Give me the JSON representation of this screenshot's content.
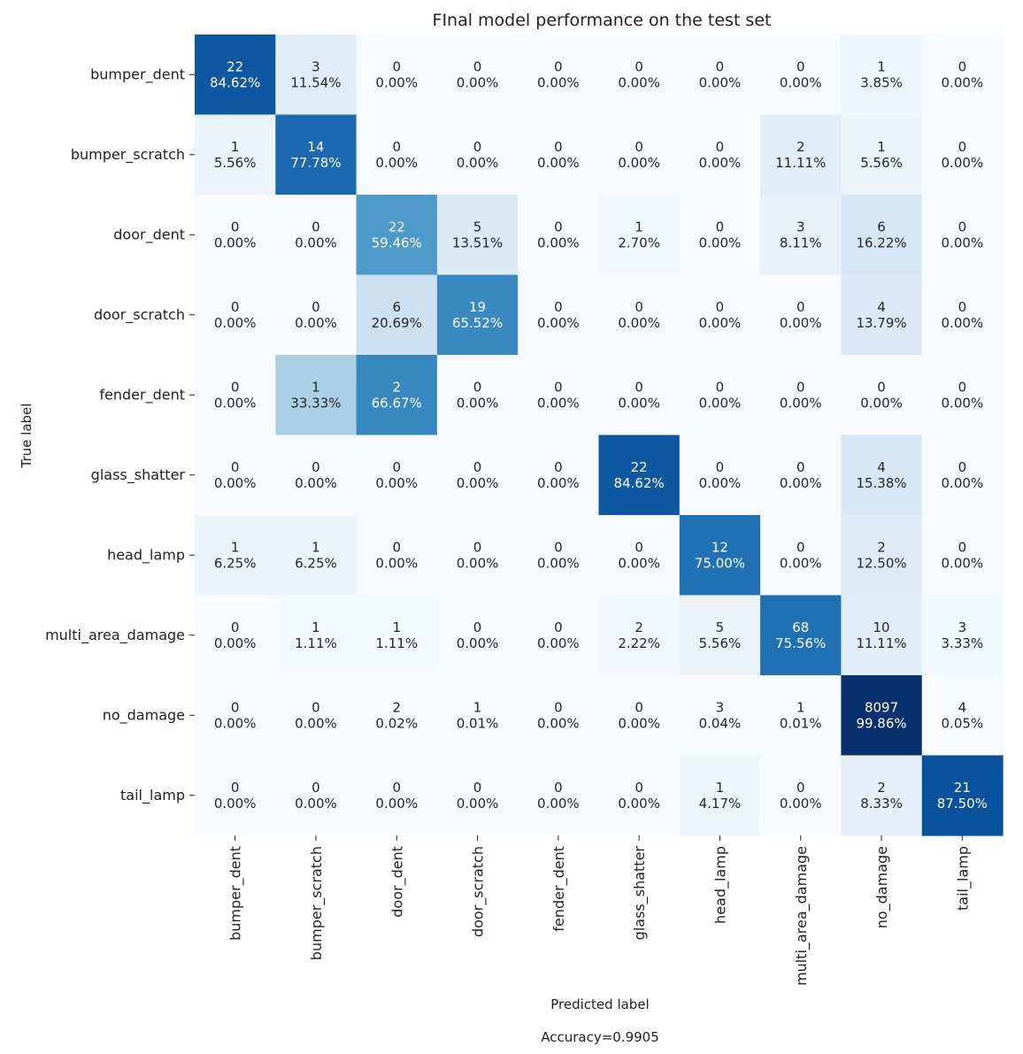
{
  "chart_data": {
    "type": "heatmap",
    "title": "FInal model performance on the test set",
    "xlabel": "Predicted label",
    "ylabel": "True label",
    "footer": "Accuracy=0.9905",
    "labels": [
      "bumper_dent",
      "bumper_scratch",
      "door_dent",
      "door_scratch",
      "fender_dent",
      "glass_shatter",
      "head_lamp",
      "multi_area_damage",
      "no_damage",
      "tail_lamp"
    ],
    "counts": [
      [
        22,
        3,
        0,
        0,
        0,
        0,
        0,
        0,
        1,
        0
      ],
      [
        1,
        14,
        0,
        0,
        0,
        0,
        0,
        2,
        1,
        0
      ],
      [
        0,
        0,
        22,
        5,
        0,
        1,
        0,
        3,
        6,
        0
      ],
      [
        0,
        0,
        6,
        19,
        0,
        0,
        0,
        0,
        4,
        0
      ],
      [
        0,
        1,
        2,
        0,
        0,
        0,
        0,
        0,
        0,
        0
      ],
      [
        0,
        0,
        0,
        0,
        0,
        22,
        0,
        0,
        4,
        0
      ],
      [
        1,
        1,
        0,
        0,
        0,
        0,
        12,
        0,
        2,
        0
      ],
      [
        0,
        1,
        1,
        0,
        0,
        2,
        5,
        68,
        10,
        3
      ],
      [
        0,
        0,
        2,
        1,
        0,
        0,
        3,
        1,
        8097,
        4
      ],
      [
        0,
        0,
        0,
        0,
        0,
        0,
        1,
        0,
        2,
        21
      ]
    ],
    "percents": [
      [
        "84.62%",
        "11.54%",
        "0.00%",
        "0.00%",
        "0.00%",
        "0.00%",
        "0.00%",
        "0.00%",
        "3.85%",
        "0.00%"
      ],
      [
        "5.56%",
        "77.78%",
        "0.00%",
        "0.00%",
        "0.00%",
        "0.00%",
        "0.00%",
        "11.11%",
        "5.56%",
        "0.00%"
      ],
      [
        "0.00%",
        "0.00%",
        "59.46%",
        "13.51%",
        "0.00%",
        "2.70%",
        "0.00%",
        "8.11%",
        "16.22%",
        "0.00%"
      ],
      [
        "0.00%",
        "0.00%",
        "20.69%",
        "65.52%",
        "0.00%",
        "0.00%",
        "0.00%",
        "0.00%",
        "13.79%",
        "0.00%"
      ],
      [
        "0.00%",
        "33.33%",
        "66.67%",
        "0.00%",
        "0.00%",
        "0.00%",
        "0.00%",
        "0.00%",
        "0.00%",
        "0.00%"
      ],
      [
        "0.00%",
        "0.00%",
        "0.00%",
        "0.00%",
        "0.00%",
        "84.62%",
        "0.00%",
        "0.00%",
        "15.38%",
        "0.00%"
      ],
      [
        "6.25%",
        "6.25%",
        "0.00%",
        "0.00%",
        "0.00%",
        "0.00%",
        "75.00%",
        "0.00%",
        "12.50%",
        "0.00%"
      ],
      [
        "0.00%",
        "1.11%",
        "1.11%",
        "0.00%",
        "0.00%",
        "2.22%",
        "5.56%",
        "75.56%",
        "11.11%",
        "3.33%"
      ],
      [
        "0.00%",
        "0.00%",
        "0.02%",
        "0.01%",
        "0.00%",
        "0.00%",
        "0.04%",
        "0.01%",
        "99.86%",
        "0.05%"
      ],
      [
        "0.00%",
        "0.00%",
        "0.00%",
        "0.00%",
        "0.00%",
        "0.00%",
        "4.17%",
        "0.00%",
        "8.33%",
        "87.50%"
      ]
    ],
    "colormap": "Blues",
    "colorbar": false,
    "grid": false
  }
}
